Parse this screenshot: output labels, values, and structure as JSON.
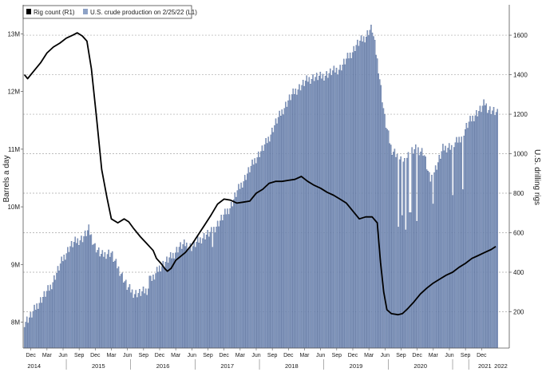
{
  "chart_data": {
    "type": "bar+line",
    "title": "",
    "legend": {
      "placement": "top-left",
      "items": [
        {
          "label": "Rig count (R1)",
          "color": "#000000"
        },
        {
          "label": "U.S. crude production on 2/25/22 (L1)",
          "color": "#8ea2c6"
        }
      ]
    },
    "y_left": {
      "label": "Barrels a day",
      "range": [
        7.55,
        13.2
      ],
      "ticks": [
        "8M",
        "9M",
        "10M",
        "11M",
        "12M",
        "13M"
      ],
      "tick_values": [
        8,
        9,
        10,
        11,
        12,
        13
      ]
    },
    "y_right": {
      "label": "U.S. drilling rigs",
      "range": [
        16,
        1665
      ],
      "ticks": [
        "200",
        "400",
        "600",
        "800",
        "1000",
        "1200",
        "1400",
        "1600"
      ],
      "tick_values": [
        200,
        400,
        600,
        800,
        1000,
        1200,
        1400,
        1600
      ]
    },
    "x_axis": {
      "range": [
        2014.78,
        2022.33
      ],
      "month_ticks": [
        {
          "label": "Dec",
          "t": 2014.9
        },
        {
          "label": "Mar",
          "t": 2015.15
        },
        {
          "label": "Jun",
          "t": 2015.4
        },
        {
          "label": "Sep",
          "t": 2015.65
        },
        {
          "label": "Dec",
          "t": 2015.9
        },
        {
          "label": "Mar",
          "t": 2016.15
        },
        {
          "label": "Jun",
          "t": 2016.4
        },
        {
          "label": "Sep",
          "t": 2016.65
        },
        {
          "label": "Dec",
          "t": 2016.9
        },
        {
          "label": "Mar",
          "t": 2017.15
        },
        {
          "label": "Jun",
          "t": 2017.4
        },
        {
          "label": "Sep",
          "t": 2017.65
        },
        {
          "label": "Dec",
          "t": 2017.9
        },
        {
          "label": "Mar",
          "t": 2018.15
        },
        {
          "label": "Jun",
          "t": 2018.4
        },
        {
          "label": "Sep",
          "t": 2018.65
        },
        {
          "label": "Dec",
          "t": 2018.9
        },
        {
          "label": "Mar",
          "t": 2019.15
        },
        {
          "label": "Jun",
          "t": 2019.4
        },
        {
          "label": "Sep",
          "t": 2019.65
        },
        {
          "label": "Dec",
          "t": 2019.9
        },
        {
          "label": "Mar",
          "t": 2020.15
        },
        {
          "label": "Jun",
          "t": 2020.4
        },
        {
          "label": "Sep",
          "t": 2020.65
        },
        {
          "label": "Dec",
          "t": 2020.9
        },
        {
          "label": "Mar",
          "t": 2021.15
        },
        {
          "label": "Jun",
          "t": 2021.4
        },
        {
          "label": "Sep",
          "t": 2021.65
        },
        {
          "label": "Dec",
          "t": 2021.9
        }
      ],
      "year_labels": [
        {
          "label": "2014",
          "t": 2014.95
        },
        {
          "label": "2015",
          "t": 2015.95
        },
        {
          "label": "2016",
          "t": 2016.95
        },
        {
          "label": "2017",
          "t": 2017.95
        },
        {
          "label": "2018",
          "t": 2018.95
        },
        {
          "label": "2019",
          "t": 2019.95
        },
        {
          "label": "2020",
          "t": 2020.95
        },
        {
          "label": "2021",
          "t": 2021.95
        },
        {
          "label": "2022",
          "t": 2022.2
        }
      ]
    },
    "series": [
      {
        "name": "U.S. crude production on 2/25/22 (L1)",
        "kind": "bar",
        "axis": "left",
        "unit": "million barrels a day",
        "points": [
          [
            2014.8,
            8.0
          ],
          [
            2014.9,
            8.1
          ],
          [
            2015.0,
            8.3
          ],
          [
            2015.1,
            8.45
          ],
          [
            2015.2,
            8.6
          ],
          [
            2015.3,
            8.85
          ],
          [
            2015.4,
            9.1
          ],
          [
            2015.5,
            9.3
          ],
          [
            2015.6,
            9.4
          ],
          [
            2015.7,
            9.45
          ],
          [
            2015.8,
            9.6
          ],
          [
            2015.9,
            9.3
          ],
          [
            2016.0,
            9.15
          ],
          [
            2016.1,
            9.2
          ],
          [
            2016.15,
            9.2
          ],
          [
            2016.2,
            9.05
          ],
          [
            2016.3,
            8.85
          ],
          [
            2016.4,
            8.6
          ],
          [
            2016.5,
            8.5
          ],
          [
            2016.6,
            8.5
          ],
          [
            2016.7,
            8.55
          ],
          [
            2016.8,
            8.75
          ],
          [
            2016.9,
            8.95
          ],
          [
            2017.0,
            9.05
          ],
          [
            2017.1,
            9.15
          ],
          [
            2017.2,
            9.3
          ],
          [
            2017.3,
            9.35
          ],
          [
            2017.4,
            9.3
          ],
          [
            2017.5,
            9.4
          ],
          [
            2017.6,
            9.5
          ],
          [
            2017.7,
            9.55
          ],
          [
            2017.8,
            9.7
          ],
          [
            2017.9,
            9.85
          ],
          [
            2018.0,
            10.0
          ],
          [
            2018.1,
            10.25
          ],
          [
            2018.2,
            10.45
          ],
          [
            2018.3,
            10.65
          ],
          [
            2018.4,
            10.85
          ],
          [
            2018.5,
            11.0
          ],
          [
            2018.6,
            11.2
          ],
          [
            2018.7,
            11.45
          ],
          [
            2018.8,
            11.65
          ],
          [
            2018.9,
            11.85
          ],
          [
            2019.0,
            12.0
          ],
          [
            2019.1,
            12.1
          ],
          [
            2019.2,
            12.2
          ],
          [
            2019.3,
            12.25
          ],
          [
            2019.4,
            12.25
          ],
          [
            2019.5,
            12.3
          ],
          [
            2019.6,
            12.35
          ],
          [
            2019.7,
            12.4
          ],
          [
            2019.8,
            12.55
          ],
          [
            2019.9,
            12.7
          ],
          [
            2019.95,
            12.8
          ],
          [
            2020.0,
            12.85
          ],
          [
            2020.1,
            12.95
          ],
          [
            2020.15,
            13.05
          ],
          [
            2020.2,
            13.1
          ],
          [
            2020.3,
            12.4
          ],
          [
            2020.4,
            11.5
          ],
          [
            2020.5,
            11.0
          ],
          [
            2020.6,
            10.9
          ],
          [
            2020.7,
            10.8
          ],
          [
            2020.8,
            10.95
          ],
          [
            2020.9,
            11.0
          ],
          [
            2021.0,
            10.95
          ],
          [
            2021.1,
            10.45
          ],
          [
            2021.2,
            10.7
          ],
          [
            2021.3,
            11.0
          ],
          [
            2021.4,
            11.05
          ],
          [
            2021.5,
            11.1
          ],
          [
            2021.6,
            11.25
          ],
          [
            2021.7,
            11.45
          ],
          [
            2021.8,
            11.6
          ],
          [
            2021.9,
            11.7
          ],
          [
            2021.95,
            11.8
          ],
          [
            2022.0,
            11.7
          ],
          [
            2022.1,
            11.65
          ],
          [
            2022.15,
            11.6
          ]
        ],
        "dips": [
          [
            2016.75,
            8.8
          ],
          [
            2017.72,
            9.3
          ],
          [
            2020.6,
            9.65
          ],
          [
            2020.67,
            9.85
          ],
          [
            2020.73,
            9.6
          ],
          [
            2020.79,
            9.9
          ],
          [
            2020.9,
            9.75
          ],
          [
            2021.15,
            10.05
          ],
          [
            2021.45,
            10.2
          ],
          [
            2021.6,
            10.3
          ]
        ]
      },
      {
        "name": "Rig count (R1)",
        "kind": "line",
        "axis": "right",
        "unit": "rigs",
        "points": [
          [
            2014.8,
            1400
          ],
          [
            2014.85,
            1380
          ],
          [
            2014.95,
            1420
          ],
          [
            2015.05,
            1460
          ],
          [
            2015.15,
            1510
          ],
          [
            2015.25,
            1540
          ],
          [
            2015.35,
            1560
          ],
          [
            2015.45,
            1585
          ],
          [
            2015.55,
            1600
          ],
          [
            2015.62,
            1612
          ],
          [
            2015.7,
            1596
          ],
          [
            2015.77,
            1570
          ],
          [
            2015.84,
            1430
          ],
          [
            2015.92,
            1180
          ],
          [
            2016.0,
            920
          ],
          [
            2016.08,
            780
          ],
          [
            2016.15,
            670
          ],
          [
            2016.25,
            650
          ],
          [
            2016.35,
            670
          ],
          [
            2016.42,
            655
          ],
          [
            2016.5,
            620
          ],
          [
            2016.6,
            580
          ],
          [
            2016.7,
            545
          ],
          [
            2016.8,
            510
          ],
          [
            2016.85,
            470
          ],
          [
            2016.92,
            445
          ],
          [
            2016.98,
            418
          ],
          [
            2017.02,
            405
          ],
          [
            2017.08,
            420
          ],
          [
            2017.15,
            460
          ],
          [
            2017.3,
            500
          ],
          [
            2017.4,
            540
          ],
          [
            2017.5,
            590
          ],
          [
            2017.6,
            640
          ],
          [
            2017.7,
            690
          ],
          [
            2017.8,
            745
          ],
          [
            2017.9,
            770
          ],
          [
            2018.0,
            765
          ],
          [
            2018.1,
            750
          ],
          [
            2018.2,
            755
          ],
          [
            2018.3,
            760
          ],
          [
            2018.4,
            800
          ],
          [
            2018.5,
            820
          ],
          [
            2018.6,
            850
          ],
          [
            2018.7,
            860
          ],
          [
            2018.8,
            860
          ],
          [
            2018.9,
            865
          ],
          [
            2019.0,
            870
          ],
          [
            2019.1,
            885
          ],
          [
            2019.2,
            860
          ],
          [
            2019.3,
            840
          ],
          [
            2019.4,
            825
          ],
          [
            2019.5,
            805
          ],
          [
            2019.6,
            790
          ],
          [
            2019.7,
            770
          ],
          [
            2019.8,
            750
          ],
          [
            2019.9,
            710
          ],
          [
            2020.0,
            670
          ],
          [
            2020.1,
            680
          ],
          [
            2020.2,
            680
          ],
          [
            2020.28,
            650
          ],
          [
            2020.33,
            450
          ],
          [
            2020.38,
            300
          ],
          [
            2020.43,
            210
          ],
          [
            2020.5,
            190
          ],
          [
            2020.6,
            185
          ],
          [
            2020.67,
            190
          ],
          [
            2020.75,
            215
          ],
          [
            2020.85,
            250
          ],
          [
            2020.95,
            290
          ],
          [
            2021.05,
            320
          ],
          [
            2021.15,
            345
          ],
          [
            2021.25,
            365
          ],
          [
            2021.35,
            385
          ],
          [
            2021.45,
            400
          ],
          [
            2021.55,
            425
          ],
          [
            2021.65,
            445
          ],
          [
            2021.75,
            470
          ],
          [
            2021.85,
            485
          ],
          [
            2021.95,
            500
          ],
          [
            2022.05,
            515
          ],
          [
            2022.12,
            530
          ]
        ]
      }
    ]
  }
}
